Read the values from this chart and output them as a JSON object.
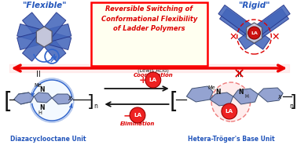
{
  "title_text": "Reversible Switching of\nConformational Flexibility\nof Ladder Polymers",
  "title_bg": "#fffff0",
  "title_border": "#ff0000",
  "title_color": "#dd0000",
  "flexible_label": "\"Flexible\"",
  "rigid_label": "\"Rigid\"",
  "label_color": "#2255bb",
  "bottom_left_label": "Diazacyclooctane Unit",
  "bottom_right_label": "Hetera-Tröger's Base Unit",
  "bottom_label_color": "#2255bb",
  "la_circle_color": "#ee2222",
  "la_text_color": "#ffffff",
  "arrow_color": "#ee0000",
  "blue_color": "#3366cc",
  "dark_color": "#111111",
  "polymer_color": "#6688bb",
  "bg_color": "#ffffff",
  "panel_color": "#4466bb",
  "panel_edge": "#223388"
}
